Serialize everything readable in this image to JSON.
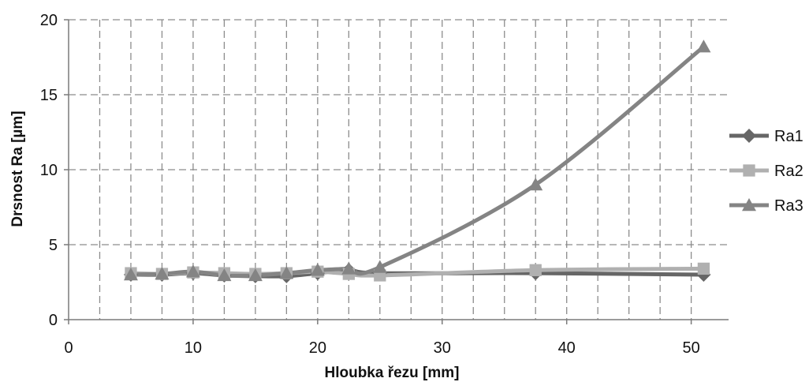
{
  "chart_data": {
    "type": "line",
    "title": "",
    "xlabel": "Hloubka řezu [mm]",
    "ylabel": "Drsnost Ra [µm]",
    "xlim": [
      0,
      53
    ],
    "ylim": [
      0,
      20
    ],
    "xticks": [
      0,
      10,
      20,
      30,
      40,
      50
    ],
    "yticks": [
      0,
      5,
      10,
      15,
      20
    ],
    "x_gridlines": [
      2.5,
      5,
      7.5,
      10,
      12.5,
      15,
      17.5,
      20,
      22.5,
      25,
      27.5,
      30,
      32.5,
      35,
      37.5,
      40,
      42.5,
      45,
      47.5,
      50
    ],
    "grid": true,
    "grid_style": "dashed",
    "legend_position": "right",
    "series": [
      {
        "name": "Ra1",
        "marker": "diamond",
        "color": "#666666",
        "x": [
          5,
          7.5,
          10,
          12.5,
          15,
          17.5,
          20,
          22.5,
          25,
          37.5,
          51
        ],
        "y": [
          3.0,
          3.0,
          3.1,
          2.95,
          2.9,
          2.9,
          3.1,
          3.3,
          3.1,
          3.1,
          3.0
        ]
      },
      {
        "name": "Ra2",
        "marker": "square",
        "color": "#b0b0b0",
        "x": [
          5,
          7.5,
          10,
          12.5,
          15,
          17.5,
          20,
          22.5,
          25,
          37.5,
          51
        ],
        "y": [
          3.1,
          3.05,
          3.15,
          3.1,
          3.05,
          3.1,
          3.2,
          3.05,
          2.95,
          3.3,
          3.4
        ]
      },
      {
        "name": "Ra3",
        "marker": "triangle",
        "color": "#848484",
        "x": [
          5,
          7.5,
          10,
          12.5,
          15,
          17.5,
          20,
          22.5,
          25,
          37.5,
          51
        ],
        "y": [
          3.0,
          3.05,
          3.2,
          2.95,
          2.95,
          3.1,
          3.3,
          3.4,
          3.5,
          9.0,
          18.2
        ]
      }
    ]
  }
}
